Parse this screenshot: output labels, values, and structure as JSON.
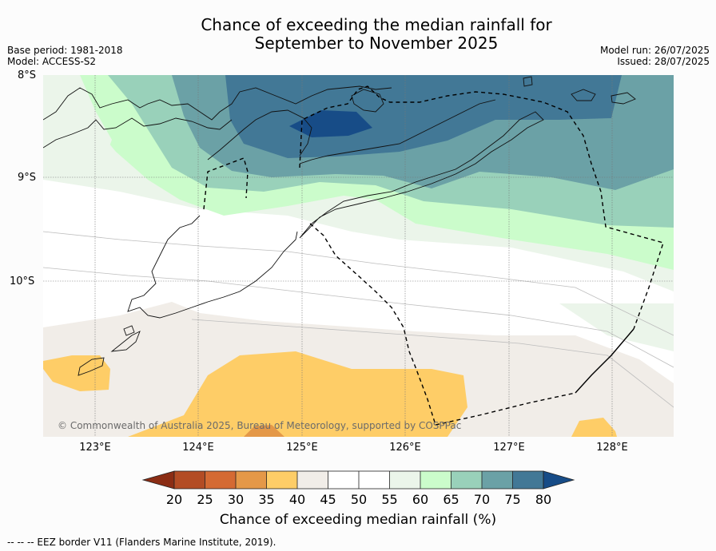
{
  "title": {
    "line1": "Chance of exceeding the median rainfall for",
    "line2": "September to November 2025"
  },
  "meta_left": {
    "base_period": "Base period: 1981-2018",
    "model": "Model: ACCESS-S2"
  },
  "meta_right": {
    "model_run": "Model run: 26/07/2025",
    "issued": "Issued: 28/07/2025"
  },
  "map": {
    "lat_labels": [
      "8°S",
      "9°S",
      "10°S"
    ],
    "lon_labels": [
      "123°E",
      "124°E",
      "125°E",
      "126°E",
      "127°E",
      "128°E"
    ],
    "copyright": "© Commonwealth of Australia 2025, Bureau of Meteorology, supported by COSPPac",
    "extent": {
      "lon_min": 122.5,
      "lon_max": 128.6,
      "lat_min": -11.5,
      "lat_max": -8.0
    }
  },
  "legend": {
    "ticks": [
      "20",
      "25",
      "30",
      "35",
      "40",
      "45",
      "50",
      "55",
      "60",
      "65",
      "70",
      "75",
      "80"
    ],
    "colors": [
      "#8b2d14",
      "#b34c24",
      "#d46a33",
      "#e49848",
      "#fecd67",
      "#f1ede8",
      "#ffffff",
      "#ffffff",
      "#ebf5ea",
      "#cbfccb",
      "#99d1ba",
      "#6ba1a6",
      "#427896",
      "#174c87"
    ],
    "label": "Chance of exceeding median rainfall (%)"
  },
  "footnote": "--  --  -- EEZ border V11 (Flanders Marine Institute, 2019)."
}
